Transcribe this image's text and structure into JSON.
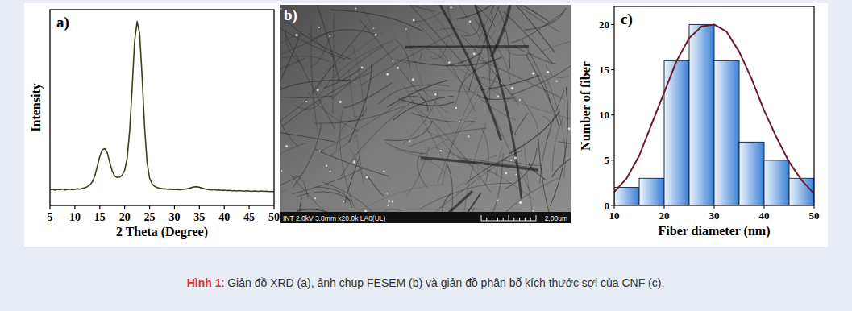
{
  "chart_data": [
    {
      "type": "line",
      "title": "a)",
      "x_label": "2 Theta (Degree)",
      "y_label": "Intensity",
      "color": "#3f3f1c",
      "x": [
        5,
        5.5,
        6,
        6.5,
        7,
        7.5,
        8,
        8.5,
        9,
        9.5,
        10,
        10.5,
        11,
        11.5,
        12,
        12.5,
        13,
        13.5,
        14,
        14.5,
        15,
        15.5,
        16,
        16.5,
        17,
        17.5,
        18,
        18.5,
        19,
        19.5,
        20,
        20.5,
        21,
        21.5,
        22,
        22.5,
        23,
        23.5,
        24,
        24.5,
        25,
        25.5,
        26,
        26.5,
        27,
        27.5,
        28,
        28.5,
        29,
        29.5,
        30,
        30.5,
        31,
        31.5,
        32,
        32.5,
        33,
        33.5,
        34,
        34.5,
        35,
        35.5,
        36,
        36.5,
        37,
        37.5,
        38,
        38.5,
        39,
        39.5,
        40,
        40.5,
        41,
        41.5,
        42,
        42.5,
        43,
        43.5,
        44,
        44.5,
        45,
        45.5,
        46,
        46.5,
        47,
        47.5,
        48,
        48.5,
        49,
        49.5,
        50
      ],
      "values": [
        8,
        8.3,
        7.8,
        8.2,
        8,
        8.4,
        7.9,
        8.1,
        8.3,
        8,
        8.2,
        8.5,
        8.3,
        8.7,
        9,
        9.6,
        10.5,
        12,
        15,
        20,
        25,
        28.5,
        29,
        27,
        22,
        17.5,
        15,
        14.3,
        14.5,
        15.5,
        18,
        24,
        38,
        60,
        84,
        94,
        88,
        66,
        40,
        22,
        14,
        11,
        9.8,
        9.2,
        8.8,
        8.6,
        8.5,
        8.3,
        8.4,
        8.2,
        8.1,
        8.2,
        8,
        8.1,
        8.3,
        8.5,
        8.8,
        9.2,
        9.5,
        9.6,
        9.3,
        8.9,
        8.5,
        8.2,
        8,
        7.9,
        8.1,
        7.8,
        7.9,
        7.7,
        7.8,
        7.6,
        7.7,
        7.5,
        7.6,
        7.4,
        7.6,
        7.5,
        7.3,
        7.5,
        7.4,
        7.2,
        7.4,
        7.3,
        7.2,
        7.4,
        7.2,
        7.3,
        7.1,
        7.2,
        7.1
      ],
      "xlim": [
        5,
        50
      ],
      "xticks": [
        5,
        10,
        15,
        20,
        25,
        30,
        35,
        40,
        45,
        50
      ],
      "ylim": [
        0,
        100
      ],
      "tick_labels": "x"
    },
    {
      "type": "histogram",
      "title": "c)",
      "x_label": "Fiber diameter (nm)",
      "y_label": "Number of fiber",
      "bins": [
        10,
        15,
        20,
        25,
        30,
        35,
        40,
        45,
        50
      ],
      "series": [
        {
          "type": "bar",
          "color": "#3a7fd5",
          "values": [
            2,
            3,
            16,
            20,
            16,
            7,
            5,
            3
          ]
        },
        {
          "type": "line",
          "color": "#6b1a2a",
          "x": [
            10,
            12.5,
            15,
            17.5,
            20,
            22.5,
            25,
            27.5,
            30,
            32.5,
            35,
            37.5,
            40,
            42.5,
            45,
            47.5,
            50
          ],
          "values": [
            1.5,
            3,
            5.5,
            9,
            12.5,
            16,
            18.5,
            19.8,
            20,
            19.2,
            17,
            14,
            10.5,
            7.5,
            4.8,
            2.8,
            1.3
          ]
        }
      ],
      "xlim": [
        10,
        50
      ],
      "xticks": [
        10,
        20,
        30,
        40,
        50
      ],
      "ylim": [
        0,
        22
      ],
      "yticks": [
        0,
        5,
        10,
        15,
        20
      ]
    }
  ],
  "image_panel": {
    "label": "b)",
    "info": "INT 2.0kV 3.8mm x20.0k LA0(UL)",
    "scale_label": "2.00um"
  },
  "caption": {
    "label": "Hình 1",
    "text": ": Giản đồ XRD (a), ảnh chụp FESEM (b) và giản đồ phân bố kích thước sợi của CNF (c)."
  }
}
